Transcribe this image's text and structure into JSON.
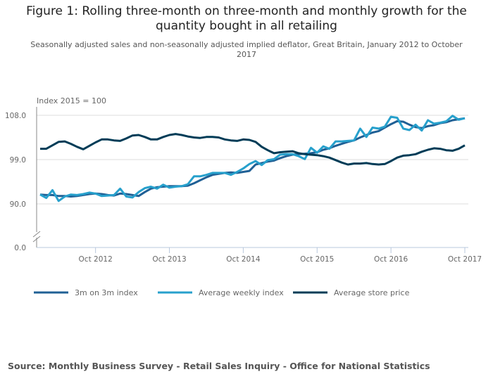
{
  "title": "Figure 1: Rolling three-month on three-month and monthly growth for the quantity bought in all retailing",
  "subtitle": "Seasonally adjusted sales and non-seasonally adjusted implied deflator, Great Britain, January 2012 to October 2017",
  "source": "Source: Monthly Business Survey - Retail Sales Inquiry - Office for National Statistics",
  "chart_data": {
    "type": "line",
    "ylabel": "Index 2015 = 100",
    "y_ticks": [
      "108.0",
      "99.0",
      "90.0",
      "0.0"
    ],
    "y_tick_values": [
      108,
      99,
      90,
      0
    ],
    "y_axis_break": true,
    "x_start": "Jan 2012",
    "x_end": "Oct 2017",
    "x_ticks": [
      "Oct 2012",
      "Oct 2013",
      "Oct 2014",
      "Oct 2015",
      "Oct 2016",
      "Oct 2017"
    ],
    "grid": true,
    "legend_position": "bottom",
    "series": [
      {
        "name": "3m on 3m index",
        "color": "#206095",
        "values": [
          91.9,
          91.8,
          91.8,
          91.6,
          91.6,
          91.5,
          91.6,
          91.8,
          92.0,
          92.1,
          92.0,
          91.8,
          91.7,
          92.1,
          92.0,
          91.8,
          91.6,
          92.4,
          93.1,
          93.4,
          93.5,
          93.6,
          93.6,
          93.6,
          93.7,
          94.2,
          94.8,
          95.4,
          95.9,
          96.1,
          96.3,
          96.4,
          96.3,
          96.5,
          96.7,
          98.0,
          98.3,
          98.6,
          98.8,
          99.3,
          99.7,
          100.0,
          100.1,
          100.2,
          100.3,
          100.5,
          101.0,
          101.3,
          101.8,
          102.2,
          102.6,
          102.9,
          103.5,
          104.0,
          104.5,
          104.8,
          105.5,
          106.2,
          106.8,
          106.7,
          106.1,
          105.6,
          105.4,
          105.8,
          106.0,
          106.4,
          106.6,
          107.0,
          107.2,
          107.4
        ]
      },
      {
        "name": "Average weekly index",
        "color": "#27a0cc",
        "values": [
          91.9,
          91.2,
          92.8,
          90.6,
          91.5,
          91.9,
          91.8,
          92.0,
          92.3,
          92.1,
          91.6,
          91.7,
          91.8,
          93.1,
          91.5,
          91.3,
          92.4,
          93.2,
          93.5,
          93.1,
          93.9,
          93.3,
          93.5,
          93.6,
          94.0,
          95.6,
          95.6,
          95.9,
          96.3,
          96.3,
          96.3,
          95.9,
          96.5,
          97.2,
          98.1,
          98.7,
          97.9,
          98.9,
          99.1,
          100.0,
          100.1,
          100.1,
          99.7,
          99.1,
          101.4,
          100.4,
          101.7,
          101.2,
          102.7,
          102.7,
          102.8,
          102.9,
          105.3,
          103.6,
          105.5,
          105.3,
          105.7,
          107.7,
          107.5,
          105.3,
          105.0,
          106.1,
          104.9,
          107.0,
          106.3,
          106.5,
          106.8,
          107.9,
          107.1,
          107.4
        ]
      },
      {
        "name": "Average store price",
        "color": "#003c57",
        "values": [
          101.2,
          101.2,
          101.9,
          102.6,
          102.7,
          102.2,
          101.6,
          101.1,
          101.8,
          102.5,
          103.1,
          103.1,
          102.9,
          102.8,
          103.3,
          103.9,
          104.0,
          103.6,
          103.1,
          103.1,
          103.6,
          104.0,
          104.2,
          104.0,
          103.7,
          103.5,
          103.4,
          103.6,
          103.6,
          103.5,
          103.1,
          102.9,
          102.8,
          103.1,
          103.0,
          102.6,
          101.6,
          100.9,
          100.3,
          100.5,
          100.6,
          100.7,
          100.3,
          100.1,
          100.0,
          99.9,
          99.7,
          99.4,
          98.9,
          98.4,
          98.0,
          98.2,
          98.2,
          98.3,
          98.1,
          98.0,
          98.1,
          98.7,
          99.4,
          99.8,
          99.9,
          100.1,
          100.6,
          101.0,
          101.3,
          101.2,
          100.9,
          100.8,
          101.2,
          101.9
        ]
      }
    ]
  }
}
